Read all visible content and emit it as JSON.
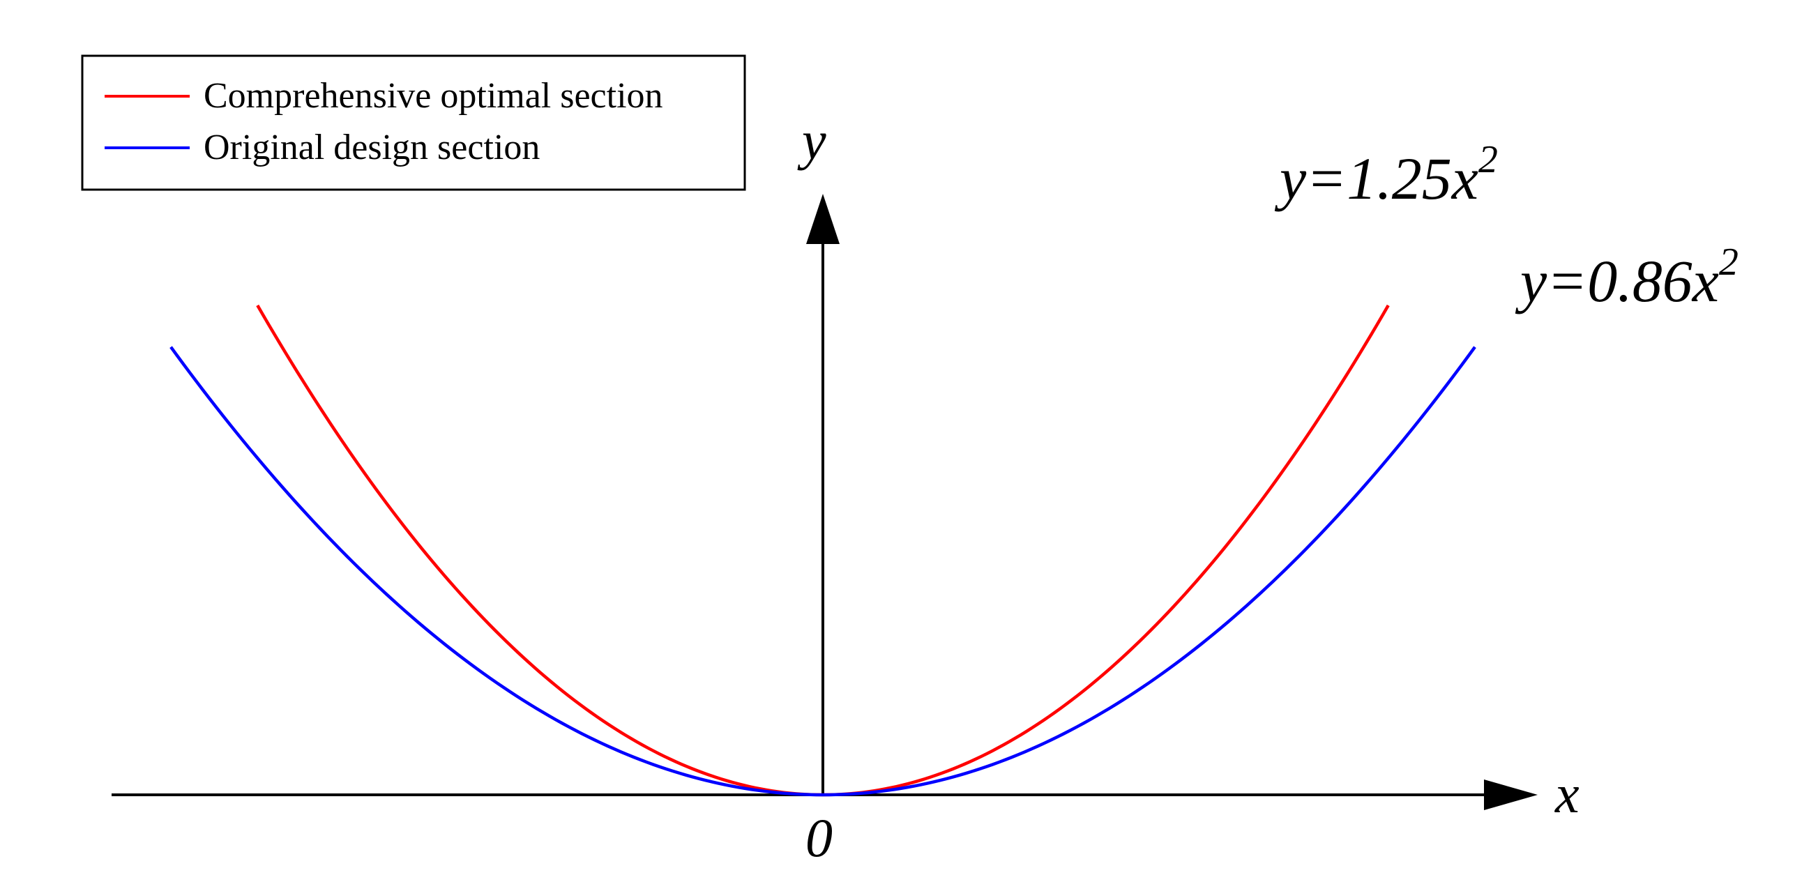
{
  "chart_data": {
    "type": "line",
    "title": "",
    "xlabel": "x",
    "ylabel": "y",
    "origin_label": "0",
    "x_range": [
      -1.56,
      1.56
    ],
    "y_range": [
      0,
      2.3
    ],
    "grid": false,
    "legend_position": "top-left",
    "series": [
      {
        "name": "Comprehensive optimal section",
        "color": "#ff0000",
        "coefficient": 1.25,
        "x_domain": [
          -1.24,
          1.24
        ],
        "equation_base": "y=1.25x",
        "equation_exp": "2"
      },
      {
        "name": "Original design section",
        "color": "#0000ff",
        "coefficient": 0.86,
        "x_domain": [
          -1.43,
          1.43
        ],
        "equation_base": "y=0.86x",
        "equation_exp": "2"
      }
    ]
  }
}
